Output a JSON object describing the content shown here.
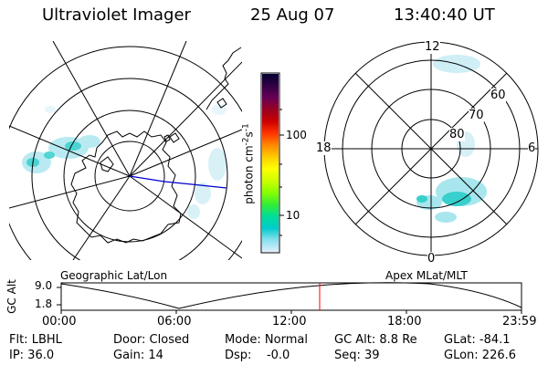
{
  "header": {
    "title": "Ultraviolet Imager",
    "date": "25 Aug 07",
    "time": "13:40:40 UT"
  },
  "colorbar": {
    "unit_label": "photon cm",
    "unit_exp1": "-2",
    "unit_s": "s",
    "unit_exp2": "-1",
    "ticks": [
      "100",
      "10"
    ],
    "colors": [
      "#000033",
      "#330044",
      "#660055",
      "#990022",
      "#cc0000",
      "#ff3300",
      "#ff8800",
      "#ffcc00",
      "#ffff00",
      "#ccff00",
      "#88ff00",
      "#33ee33",
      "#00dd99",
      "#00cccc",
      "#88e0ee",
      "#ddeeff"
    ]
  },
  "geo_map": {
    "caption": "Geographic Lat/Lon"
  },
  "apex_map": {
    "caption": "Apex MLat/MLT",
    "hour_labels": {
      "top": "12",
      "left": "18",
      "right": "6",
      "bottom": "0"
    },
    "lat_labels": [
      "60",
      "70",
      "80"
    ]
  },
  "altitude_strip": {
    "axis_label": "GC Alt",
    "y_ticks": [
      "9.0",
      "1.8"
    ],
    "x_ticks": [
      "00:00",
      "06:00",
      "12:00",
      "18:00",
      "23:59"
    ],
    "marker_color": "#ff0000"
  },
  "status": {
    "row1": [
      "Flt: LBHL",
      "Door: Closed",
      "Mode: Normal",
      "GC Alt: 8.8 Re",
      "GLat: -84.1"
    ],
    "row2": [
      "IP: 36.0",
      "Gain: 14",
      "Dsp:    -0.0",
      "Seq: 39",
      "GLon: 226.6"
    ]
  }
}
